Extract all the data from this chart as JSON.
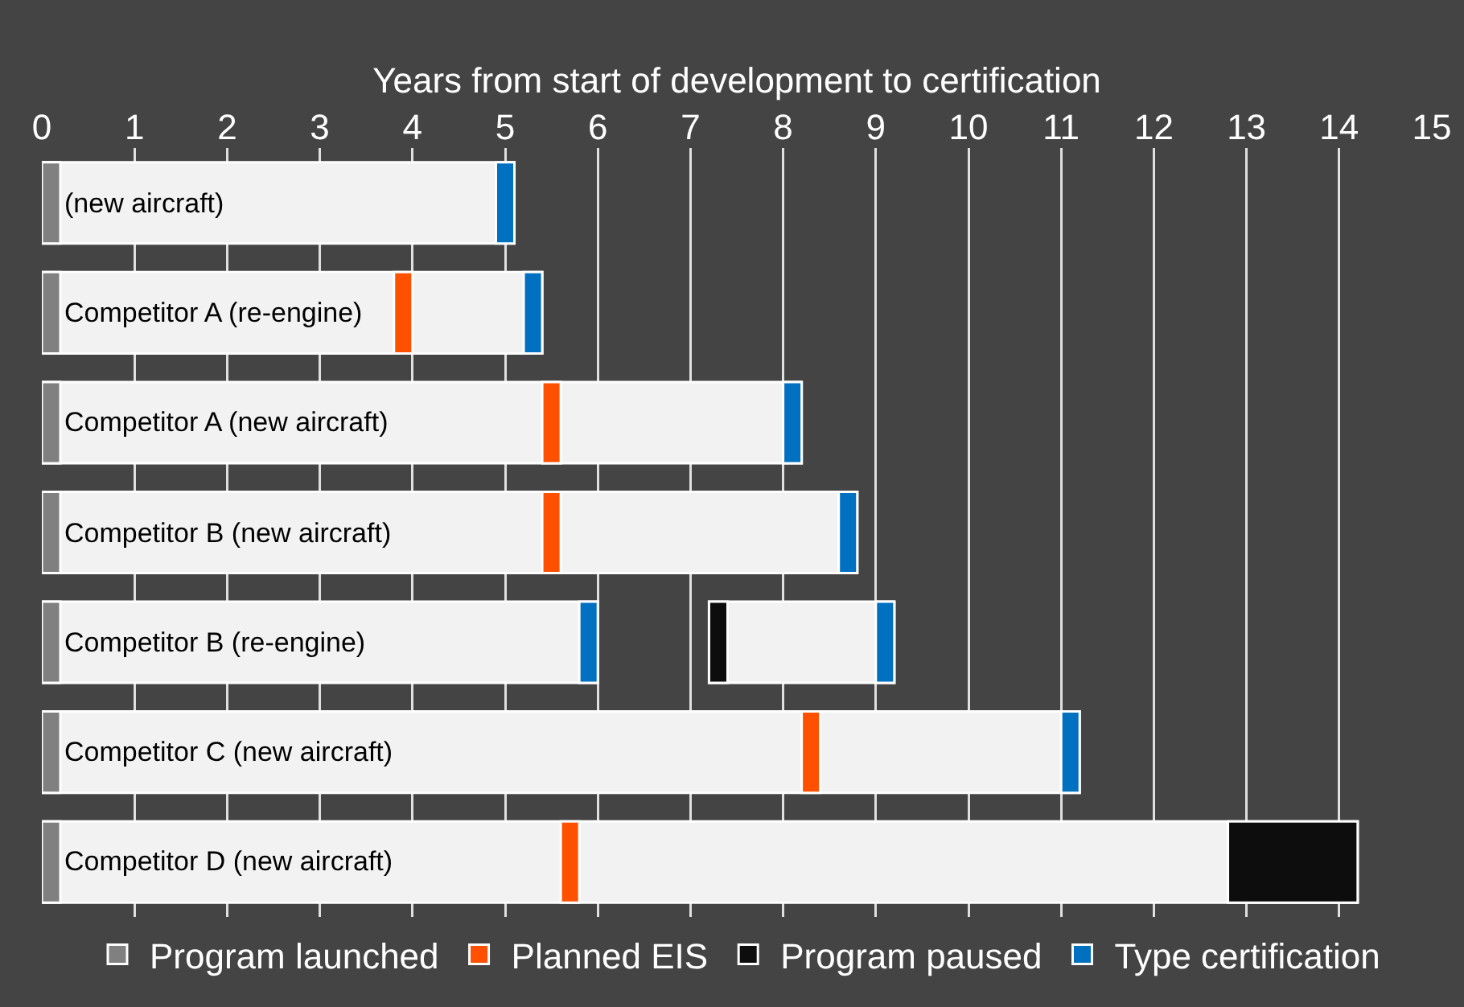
{
  "chart_data": {
    "type": "bar",
    "orientation": "horizontal",
    "xlabel": "Years from start of development to certification",
    "categories": [
      "(new aircraft)",
      "Competitor A (re-engine)",
      "Competitor A (new aircraft)",
      "Competitor B (new aircraft)",
      "Competitor B (re-engine)",
      "Competitor C (new aircraft)",
      "Competitor D (new aircraft)"
    ],
    "xlim": [
      0,
      15
    ],
    "xticks": [
      0,
      1,
      2,
      3,
      4,
      5,
      6,
      7,
      8,
      9,
      10,
      11,
      12,
      13,
      14,
      15
    ],
    "grid": "x",
    "legend": "bottom",
    "series": [
      {
        "color": "#f2f2f2",
        "base": [
          0,
          0,
          0,
          0,
          0,
          0,
          0
        ],
        "values": [
          5.1,
          5.4,
          8.2,
          8.8,
          6.0,
          11.2,
          14.2
        ]
      },
      {
        "color": "#f2f2f2",
        "base": [
          null,
          null,
          null,
          null,
          7.2,
          null,
          null
        ],
        "values": [
          null,
          null,
          null,
          null,
          2.0,
          null,
          null
        ]
      },
      {
        "name": "Program launched",
        "color": "#808080",
        "base": [
          0,
          0,
          0,
          0,
          0,
          0,
          0
        ],
        "values": [
          0.2,
          0.2,
          0.2,
          0.2,
          0.2,
          0.2,
          0.2
        ]
      },
      {
        "name": "Planned EIS",
        "color": "#ff5000",
        "base": [
          null,
          3.8,
          5.4,
          5.4,
          null,
          8.2,
          5.6
        ],
        "values": [
          null,
          0.2,
          0.2,
          0.2,
          null,
          0.2,
          0.2
        ]
      },
      {
        "name": "Program paused",
        "color": "#0d0d0d",
        "base": [
          null,
          null,
          null,
          null,
          7.2,
          null,
          12.8
        ],
        "values": [
          null,
          null,
          null,
          null,
          0.2,
          null,
          1.4
        ]
      },
      {
        "name": "Type certification",
        "color": "#0070c0",
        "base": [
          4.9,
          5.2,
          8.0,
          8.6,
          5.8,
          11.0,
          null
        ],
        "values": [
          0.2,
          0.2,
          0.2,
          0.2,
          0.2,
          0.2,
          null
        ]
      },
      {
        "color": "#0070c0",
        "base": [
          null,
          null,
          null,
          null,
          9.0,
          null,
          null
        ],
        "values": [
          null,
          null,
          null,
          null,
          0.2,
          null,
          null
        ]
      }
    ]
  }
}
